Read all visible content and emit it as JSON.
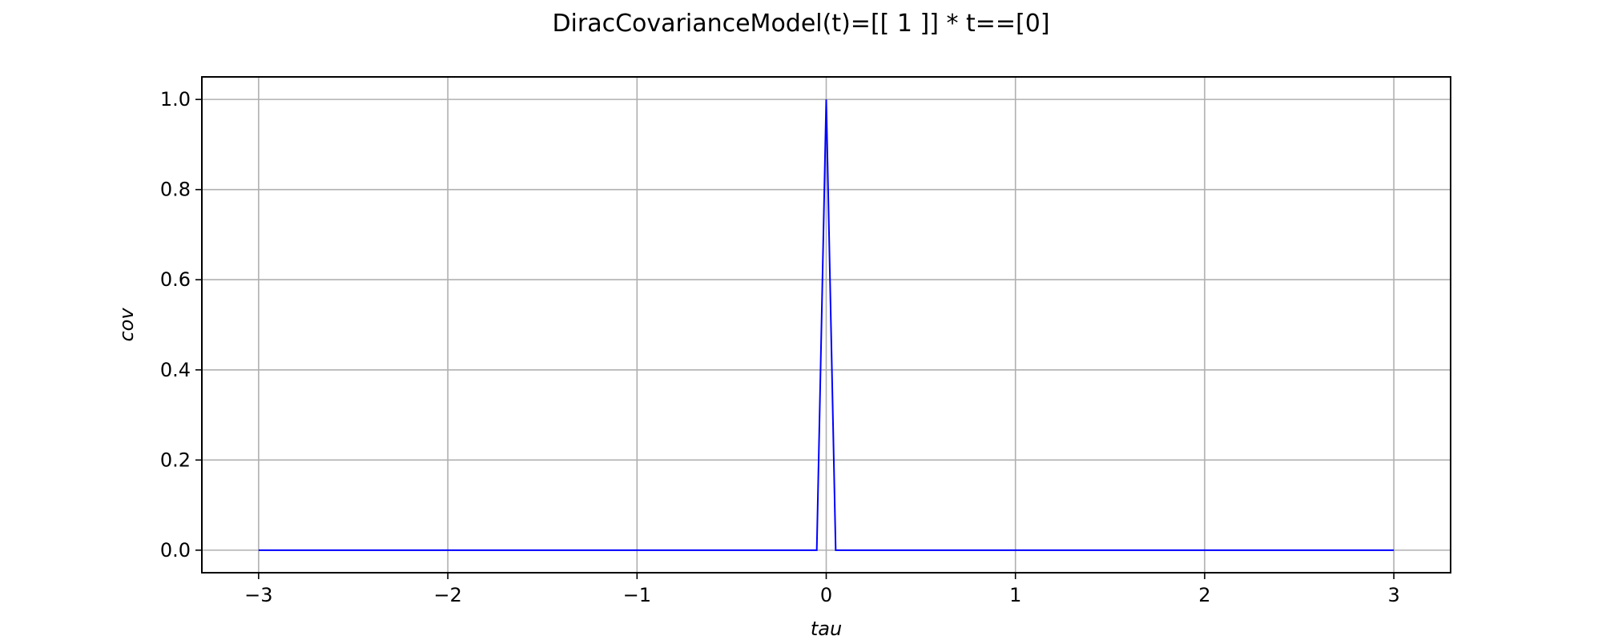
{
  "chart_data": {
    "type": "line",
    "title": "DiracCovarianceModel(t)=[[ 1 ]] * t==[0]",
    "xlabel": "tau",
    "ylabel": "cov",
    "xlim": [
      -3.3,
      3.3
    ],
    "ylim": [
      -0.05,
      1.05
    ],
    "xticks": [
      -3,
      -2,
      -1,
      0,
      1,
      2,
      3
    ],
    "xtick_labels": [
      "−3",
      "−2",
      "−1",
      "0",
      "1",
      "2",
      "3"
    ],
    "yticks": [
      0.0,
      0.2,
      0.4,
      0.6,
      0.8,
      1.0
    ],
    "ytick_labels": [
      "0.0",
      "0.2",
      "0.4",
      "0.6",
      "0.8",
      "1.0"
    ],
    "grid": true,
    "series": [
      {
        "color": "#0000ff",
        "x": [
          -3.0,
          -0.05,
          0.0,
          0.05,
          3.0
        ],
        "y": [
          0.0,
          0.0,
          1.0,
          0.0,
          0.0
        ]
      }
    ]
  },
  "colors": {
    "grid": "#b0b0b0",
    "axes": "#000000",
    "line": "#0000ff"
  }
}
